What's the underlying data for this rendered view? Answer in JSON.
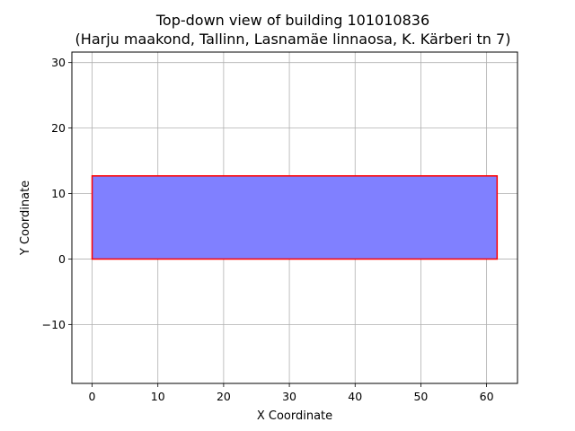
{
  "chart_data": {
    "type": "area",
    "title": "Top-down view of building 101010836",
    "subtitle": "(Harju maakond, Tallinn, Lasnamäe linnaosa, K. Kärberi tn 7)",
    "xlabel": "X Coordinate",
    "ylabel": "Y Coordinate",
    "xlim": [
      -3.08,
      64.7
    ],
    "ylim": [
      -19,
      31.6
    ],
    "xticks": [
      0,
      10,
      20,
      30,
      40,
      50,
      60
    ],
    "yticks": [
      -10,
      0,
      10,
      20,
      30
    ],
    "xtick_labels": [
      "0",
      "10",
      "20",
      "30",
      "40",
      "50",
      "60"
    ],
    "ytick_labels": [
      "−10",
      "0",
      "10",
      "20",
      "30"
    ],
    "grid": true,
    "polygon": {
      "x": [
        0,
        61.6,
        61.6,
        0
      ],
      "y": [
        0,
        0,
        12.7,
        12.7
      ],
      "fill": "#8080ff",
      "edge": "#ff0000"
    },
    "colors": {
      "grid": "#b0b0b0",
      "axes": "#000000"
    }
  }
}
